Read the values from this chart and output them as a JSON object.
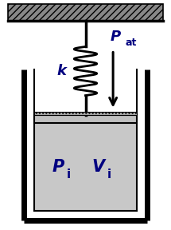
{
  "bg_color": "#ffffff",
  "fig_width": 2.15,
  "fig_height": 2.88,
  "dpi": 100,
  "ceiling_color": "#888888",
  "gas_color": "#c8c8c8",
  "piston_color": "#c0c0c0",
  "label_k": "k",
  "label_pat_main": "P",
  "label_pat_sub": "at",
  "label_pi_main": "P",
  "label_pi_sub": "i",
  "label_vi_main": "V",
  "label_vi_sub": "i",
  "text_color": "#000080",
  "coil_color": "#000000",
  "wall_color": "#000000"
}
